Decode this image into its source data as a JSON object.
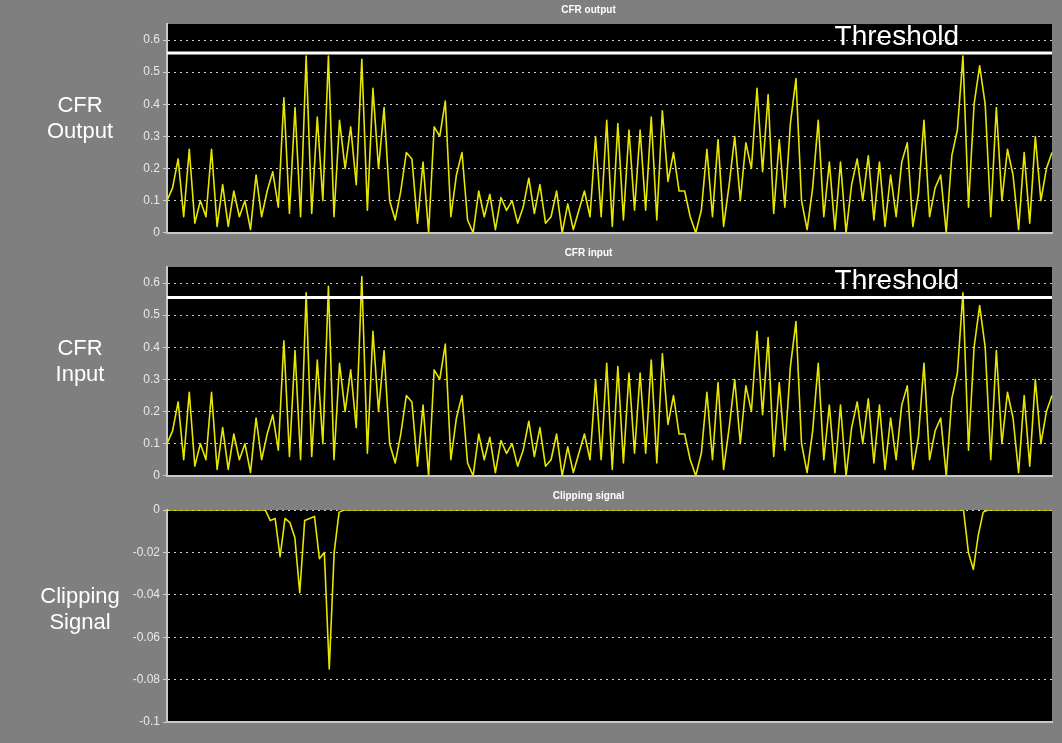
{
  "chart_data": [
    {
      "type": "line",
      "title": "CFR output",
      "ylabel": "CFR Output",
      "ylim": [
        0,
        0.65
      ],
      "grid": "y",
      "tick_labels": "y",
      "categories": [
        null,
        null,
        null,
        null,
        null,
        null,
        null,
        null,
        null,
        null,
        null,
        null,
        null,
        null,
        null,
        null,
        null,
        null,
        null,
        null,
        null,
        null,
        null,
        null,
        null,
        null,
        null,
        null,
        null,
        null,
        null,
        null,
        null,
        null,
        null,
        null,
        null,
        null,
        null,
        null,
        null,
        null,
        null,
        null,
        null,
        null,
        null,
        null,
        null,
        null,
        null,
        null,
        null,
        null,
        null,
        null,
        null,
        null,
        null,
        null,
        null,
        null,
        null,
        null,
        null,
        null,
        null,
        null,
        null,
        null,
        null,
        null,
        null,
        null,
        null,
        null,
        null,
        null,
        null,
        null,
        null,
        null,
        null,
        null,
        null,
        null,
        null,
        null,
        null,
        null,
        null,
        null,
        null,
        null,
        null,
        null,
        null,
        null,
        null,
        null,
        null,
        null,
        null,
        null,
        null,
        null,
        null,
        null,
        null,
        null,
        null,
        null,
        null,
        null,
        null,
        null,
        null,
        null,
        null,
        null,
        null,
        null,
        null,
        null,
        null,
        null,
        null,
        null,
        null,
        null,
        null,
        null,
        null,
        null,
        null,
        null,
        null,
        null,
        null,
        null,
        null,
        null,
        null,
        null,
        null,
        null,
        null,
        null,
        null,
        null,
        null,
        null,
        null,
        null,
        null,
        null,
        null,
        null,
        null,
        null
      ],
      "yticks": [
        0,
        0.1,
        0.2,
        0.3,
        0.4,
        0.5,
        0.6
      ],
      "ref_lines": [
        {
          "axis": "y",
          "value": 0.56,
          "label": "Threshold",
          "color": "#ffffff"
        }
      ],
      "series": [
        {
          "color": "#e6e600",
          "values": [
            0.1,
            0.14,
            0.23,
            0.05,
            0.26,
            0.03,
            0.1,
            0.05,
            0.26,
            0.02,
            0.15,
            0.02,
            0.13,
            0.05,
            0.1,
            0.01,
            0.18,
            0.05,
            0.13,
            0.19,
            0.08,
            0.42,
            0.06,
            0.39,
            0.05,
            0.55,
            0.06,
            0.36,
            0.1,
            0.55,
            0.05,
            0.35,
            0.2,
            0.33,
            0.15,
            0.54,
            0.07,
            0.45,
            0.2,
            0.39,
            0.1,
            0.04,
            0.13,
            0.25,
            0.23,
            0.03,
            0.22,
            0.0,
            0.33,
            0.3,
            0.41,
            0.05,
            0.18,
            0.25,
            0.04,
            0.0,
            0.13,
            0.05,
            0.12,
            0.01,
            0.11,
            0.07,
            0.1,
            0.03,
            0.08,
            0.17,
            0.06,
            0.15,
            0.03,
            0.05,
            0.13,
            0.0,
            0.09,
            0.01,
            0.07,
            0.13,
            0.05,
            0.3,
            0.05,
            0.35,
            0.02,
            0.34,
            0.04,
            0.32,
            0.07,
            0.32,
            0.07,
            0.36,
            0.04,
            0.38,
            0.16,
            0.25,
            0.13,
            0.13,
            0.05,
            0.0,
            0.07,
            0.26,
            0.05,
            0.29,
            0.02,
            0.15,
            0.3,
            0.1,
            0.28,
            0.2,
            0.45,
            0.19,
            0.43,
            0.06,
            0.29,
            0.08,
            0.34,
            0.48,
            0.1,
            0.01,
            0.14,
            0.35,
            0.05,
            0.22,
            0.01,
            0.22,
            0.0,
            0.15,
            0.23,
            0.1,
            0.24,
            0.04,
            0.22,
            0.02,
            0.18,
            0.05,
            0.22,
            0.28,
            0.02,
            0.12,
            0.35,
            0.05,
            0.14,
            0.18,
            0.0,
            0.24,
            0.32,
            0.55,
            0.08,
            0.4,
            0.52,
            0.4,
            0.05,
            0.39,
            0.1,
            0.26,
            0.18,
            0.01,
            0.25,
            0.03,
            0.3,
            0.1,
            0.2,
            0.25
          ]
        }
      ]
    },
    {
      "type": "line",
      "title": "CFR input",
      "ylabel": "CFR Input",
      "ylim": [
        0,
        0.65
      ],
      "grid": "y",
      "tick_labels": "y",
      "categories": [
        null,
        null,
        null,
        null,
        null,
        null,
        null,
        null,
        null,
        null,
        null,
        null,
        null,
        null,
        null,
        null,
        null,
        null,
        null,
        null,
        null,
        null,
        null,
        null,
        null,
        null,
        null,
        null,
        null,
        null,
        null,
        null,
        null,
        null,
        null,
        null,
        null,
        null,
        null,
        null,
        null,
        null,
        null,
        null,
        null,
        null,
        null,
        null,
        null,
        null,
        null,
        null,
        null,
        null,
        null,
        null,
        null,
        null,
        null,
        null,
        null,
        null,
        null,
        null,
        null,
        null,
        null,
        null,
        null,
        null,
        null,
        null,
        null,
        null,
        null,
        null,
        null,
        null,
        null,
        null,
        null,
        null,
        null,
        null,
        null,
        null,
        null,
        null,
        null,
        null,
        null,
        null,
        null,
        null,
        null,
        null,
        null,
        null,
        null,
        null,
        null,
        null,
        null,
        null,
        null,
        null,
        null,
        null,
        null,
        null,
        null,
        null,
        null,
        null,
        null,
        null,
        null,
        null,
        null,
        null,
        null,
        null,
        null,
        null,
        null,
        null,
        null,
        null,
        null,
        null,
        null,
        null,
        null,
        null,
        null,
        null,
        null,
        null,
        null,
        null,
        null,
        null,
        null,
        null,
        null,
        null,
        null,
        null,
        null,
        null,
        null,
        null,
        null,
        null,
        null,
        null,
        null,
        null,
        null,
        null
      ],
      "yticks": [
        0,
        0.1,
        0.2,
        0.3,
        0.4,
        0.5,
        0.6
      ],
      "ref_lines": [
        {
          "axis": "y",
          "value": 0.555,
          "label": "Threshold",
          "color": "#ffffff"
        }
      ],
      "series": [
        {
          "color": "#e6e600",
          "values": [
            0.1,
            0.14,
            0.23,
            0.05,
            0.26,
            0.03,
            0.1,
            0.05,
            0.26,
            0.02,
            0.15,
            0.02,
            0.13,
            0.05,
            0.1,
            0.01,
            0.18,
            0.05,
            0.13,
            0.19,
            0.08,
            0.42,
            0.06,
            0.39,
            0.05,
            0.57,
            0.06,
            0.36,
            0.1,
            0.59,
            0.05,
            0.35,
            0.2,
            0.33,
            0.15,
            0.62,
            0.07,
            0.45,
            0.2,
            0.39,
            0.1,
            0.04,
            0.13,
            0.25,
            0.23,
            0.03,
            0.22,
            0.0,
            0.33,
            0.3,
            0.41,
            0.05,
            0.18,
            0.25,
            0.04,
            0.0,
            0.13,
            0.05,
            0.12,
            0.01,
            0.11,
            0.07,
            0.1,
            0.03,
            0.08,
            0.17,
            0.06,
            0.15,
            0.03,
            0.05,
            0.13,
            0.0,
            0.09,
            0.01,
            0.07,
            0.13,
            0.05,
            0.3,
            0.05,
            0.35,
            0.02,
            0.34,
            0.04,
            0.32,
            0.07,
            0.32,
            0.07,
            0.36,
            0.04,
            0.38,
            0.16,
            0.25,
            0.13,
            0.13,
            0.05,
            0.0,
            0.07,
            0.26,
            0.05,
            0.29,
            0.02,
            0.15,
            0.3,
            0.1,
            0.28,
            0.2,
            0.45,
            0.19,
            0.43,
            0.06,
            0.29,
            0.08,
            0.34,
            0.48,
            0.1,
            0.01,
            0.14,
            0.35,
            0.05,
            0.22,
            0.01,
            0.22,
            0.0,
            0.15,
            0.23,
            0.1,
            0.24,
            0.04,
            0.22,
            0.02,
            0.18,
            0.05,
            0.22,
            0.28,
            0.02,
            0.12,
            0.35,
            0.05,
            0.14,
            0.18,
            0.0,
            0.24,
            0.32,
            0.57,
            0.08,
            0.4,
            0.53,
            0.4,
            0.05,
            0.39,
            0.1,
            0.26,
            0.18,
            0.01,
            0.25,
            0.03,
            0.3,
            0.1,
            0.2,
            0.25
          ]
        }
      ]
    },
    {
      "type": "line",
      "title": "Clipping signal",
      "ylabel": "Clipping Signal",
      "ylim": [
        -0.1,
        0
      ],
      "grid": "y",
      "tick_labels": "y",
      "categories": [
        null,
        null,
        null,
        null,
        null,
        null,
        null,
        null,
        null,
        null,
        null,
        null,
        null,
        null,
        null,
        null,
        null,
        null,
        null,
        null,
        null,
        null,
        null,
        null,
        null,
        null,
        null,
        null,
        null,
        null,
        null,
        null,
        null,
        null,
        null,
        null,
        null,
        null,
        null,
        null,
        null,
        null,
        null,
        null,
        null,
        null,
        null,
        null,
        null,
        null,
        null,
        null,
        null,
        null,
        null,
        null,
        null,
        null,
        null,
        null,
        null,
        null,
        null,
        null,
        null,
        null,
        null,
        null,
        null,
        null,
        null,
        null,
        null,
        null,
        null,
        null,
        null,
        null,
        null,
        null,
        null,
        null,
        null,
        null,
        null,
        null,
        null,
        null,
        null,
        null,
        null,
        null,
        null,
        null,
        null,
        null,
        null,
        null,
        null,
        null,
        null,
        null,
        null,
        null,
        null,
        null,
        null,
        null,
        null,
        null,
        null,
        null,
        null,
        null,
        null,
        null,
        null,
        null,
        null,
        null,
        null,
        null,
        null,
        null,
        null,
        null,
        null,
        null,
        null,
        null,
        null,
        null,
        null,
        null,
        null,
        null,
        null,
        null,
        null,
        null,
        null,
        null,
        null,
        null,
        null,
        null,
        null,
        null,
        null,
        null,
        null,
        null,
        null,
        null,
        null,
        null,
        null,
        null,
        null,
        null,
        null,
        null,
        null,
        null,
        null,
        null,
        null,
        null,
        null,
        null,
        null,
        null,
        null,
        null,
        null,
        null,
        null,
        null,
        null,
        null,
        null
      ],
      "yticks": [
        -0.1,
        -0.08,
        -0.06,
        -0.04,
        -0.02,
        0
      ],
      "series": [
        {
          "color": "#e6e600",
          "values": [
            0,
            0,
            0,
            0,
            0,
            0,
            0,
            0,
            0,
            0,
            0,
            0,
            0,
            0,
            0,
            0,
            0,
            0,
            0,
            0,
            0,
            -0.005,
            -0.004,
            -0.022,
            -0.004,
            -0.006,
            -0.013,
            -0.039,
            -0.005,
            -0.004,
            -0.003,
            -0.023,
            -0.02,
            -0.075,
            -0.02,
            -0.001,
            0,
            0,
            0,
            0,
            0,
            0,
            0,
            0,
            0,
            0,
            0,
            0,
            0,
            0,
            0,
            0,
            0,
            0,
            0,
            0,
            0,
            0,
            0,
            0,
            0,
            0,
            0,
            0,
            0,
            0,
            0,
            0,
            0,
            0,
            0,
            0,
            0,
            0,
            0,
            0,
            0,
            0,
            0,
            0,
            0,
            0,
            0,
            0,
            0,
            0,
            0,
            0,
            0,
            0,
            0,
            0,
            0,
            0,
            0,
            0,
            0,
            0,
            0,
            0,
            0,
            0,
            0,
            0,
            0,
            0,
            0,
            0,
            0,
            0,
            0,
            0,
            0,
            0,
            0,
            0,
            0,
            0,
            0,
            0,
            0,
            0,
            0,
            0,
            0,
            0,
            0,
            0,
            0,
            0,
            0,
            0,
            0,
            0,
            0,
            0,
            0,
            0,
            0,
            0,
            0,
            0,
            0,
            0,
            0,
            0,
            0,
            0,
            0,
            0,
            0,
            0,
            0,
            0,
            0,
            0,
            0,
            0,
            0,
            0,
            0,
            0,
            0,
            -0.02,
            -0.028,
            -0.012,
            -0.001,
            0,
            0,
            0,
            0,
            0,
            0,
            0,
            0,
            0,
            0,
            0,
            0,
            0,
            0
          ]
        }
      ]
    }
  ]
}
